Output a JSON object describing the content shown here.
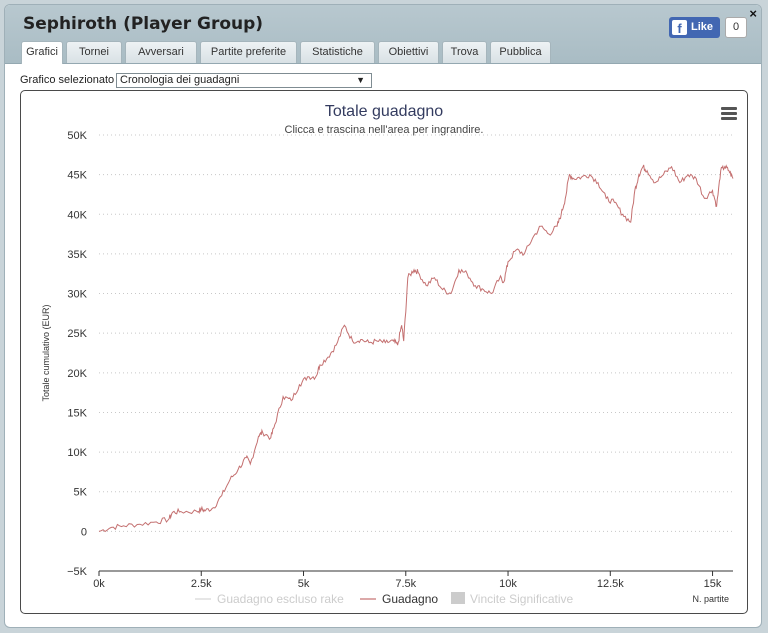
{
  "window": {
    "title": "Sephiroth (Player Group)",
    "close_label": "×",
    "fb": {
      "like_label": "Like",
      "logo": "f",
      "count": "0"
    }
  },
  "tabs": [
    {
      "label": "Grafici",
      "active": true
    },
    {
      "label": "Tornei"
    },
    {
      "label": "Avversari"
    },
    {
      "label": "Partite preferite"
    },
    {
      "label": "Statistiche"
    },
    {
      "label": "Obiettivi"
    },
    {
      "label": "Trova"
    },
    {
      "label": "Pubblica"
    }
  ],
  "chart_select": {
    "label": "Grafico selezionato",
    "value": "Cronologia dei guadagni",
    "arrow": "▼"
  },
  "icons": {
    "menu": "hamburger-menu-icon",
    "close": "close-icon",
    "facebook": "facebook-icon"
  },
  "colors": {
    "series_line": "#c47070",
    "excluded_rake": "#cccccc",
    "title": "#333b5f"
  },
  "chart_data": {
    "type": "line",
    "title": "Totale guadagno",
    "subtitle": "Clicca e trascina nell'area per ingrandire.",
    "xlabel": "N. partite",
    "ylabel": "Totale cumulativo (EUR)",
    "xlim": [
      0,
      15500
    ],
    "ylim": [
      -5000,
      50000
    ],
    "x_ticks": [
      {
        "v": 0,
        "label": "0k"
      },
      {
        "v": 2500,
        "label": "2.5k"
      },
      {
        "v": 5000,
        "label": "5k"
      },
      {
        "v": 7500,
        "label": "7.5k"
      },
      {
        "v": 10000,
        "label": "10k"
      },
      {
        "v": 12500,
        "label": "12.5k"
      },
      {
        "v": 15000,
        "label": "15k"
      }
    ],
    "y_ticks": [
      {
        "v": -5000,
        "label": "−5K"
      },
      {
        "v": 0,
        "label": "0"
      },
      {
        "v": 5000,
        "label": "5K"
      },
      {
        "v": 10000,
        "label": "10K"
      },
      {
        "v": 15000,
        "label": "15K"
      },
      {
        "v": 20000,
        "label": "20K"
      },
      {
        "v": 25000,
        "label": "25K"
      },
      {
        "v": 30000,
        "label": "30K"
      },
      {
        "v": 35000,
        "label": "35K"
      },
      {
        "v": 40000,
        "label": "40K"
      },
      {
        "v": 45000,
        "label": "45K"
      },
      {
        "v": 50000,
        "label": "50K"
      }
    ],
    "grid": "horizontal-dotted",
    "legend_position": "bottom",
    "series": [
      {
        "name": "Guadagno escluso rake",
        "visible": false,
        "x": [],
        "y": []
      },
      {
        "name": "Guadagno",
        "visible": true,
        "x": [
          0,
          300,
          600,
          1000,
          1400,
          1700,
          1800,
          2000,
          2400,
          2500,
          2600,
          2800,
          3000,
          3200,
          3400,
          3600,
          3700,
          3900,
          4000,
          4200,
          4300,
          4500,
          4700,
          4900,
          5100,
          5300,
          5400,
          5600,
          5800,
          6000,
          6200,
          6400,
          6600,
          6800,
          7000,
          7200,
          7300,
          7400,
          7450,
          7550,
          7700,
          7800,
          8000,
          8200,
          8400,
          8600,
          8800,
          9000,
          9200,
          9400,
          9600,
          9800,
          9900,
          10000,
          10200,
          10400,
          10600,
          10800,
          11000,
          11200,
          11300,
          11400,
          11500,
          11600,
          11800,
          12000,
          12200,
          12400,
          12600,
          12800,
          13000,
          13100,
          13200,
          13300,
          13400,
          13600,
          13800,
          14000,
          14200,
          14400,
          14600,
          14800,
          15000,
          15100,
          15200,
          15300,
          15400,
          15500
        ],
        "y": [
          0,
          500,
          700,
          900,
          1200,
          1500,
          2400,
          2500,
          2500,
          2800,
          2600,
          3000,
          4500,
          6500,
          7800,
          9300,
          8500,
          12000,
          12500,
          11800,
          13500,
          17000,
          16500,
          18500,
          19500,
          19500,
          21000,
          22000,
          23500,
          26000,
          24000,
          24200,
          23800,
          24000,
          23800,
          24000,
          23500,
          26000,
          24000,
          32000,
          33000,
          32700,
          31000,
          32000,
          30500,
          30000,
          33000,
          32500,
          31000,
          30500,
          30000,
          32000,
          31500,
          34000,
          35500,
          35000,
          37000,
          38500,
          37500,
          38500,
          40000,
          42000,
          45000,
          44500,
          44700,
          45000,
          44000,
          42000,
          41500,
          40000,
          39000,
          43000,
          45000,
          46000,
          45500,
          44000,
          45000,
          46000,
          44000,
          45000,
          44500,
          42000,
          43000,
          41000,
          45500,
          46000,
          45500,
          44500
        ]
      }
    ]
  }
}
